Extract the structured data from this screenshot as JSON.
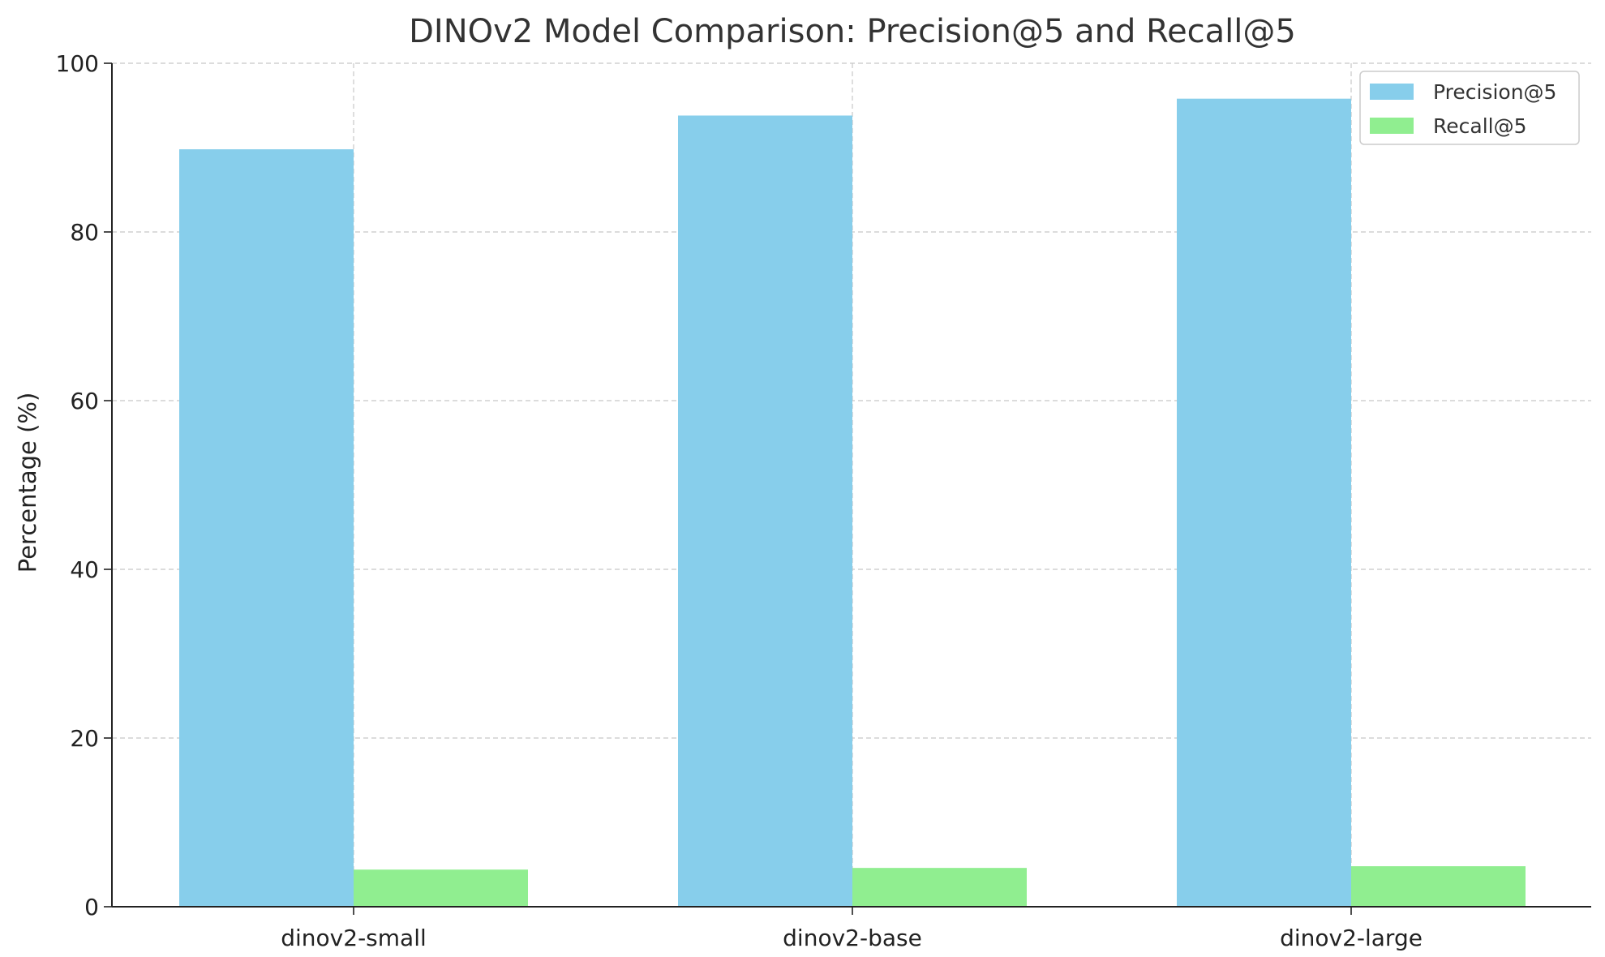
{
  "chart_data": {
    "type": "bar",
    "title": "DINOv2 Model Comparison: Precision@5 and Recall@5",
    "xlabel": "",
    "ylabel": "Percentage (%)",
    "categories": [
      "dinov2-small",
      "dinov2-base",
      "dinov2-large"
    ],
    "series": [
      {
        "name": "Precision@5",
        "values": [
          89.8,
          93.8,
          95.8
        ],
        "color": "#87CEEB"
      },
      {
        "name": "Recall@5",
        "values": [
          4.4,
          4.6,
          4.8
        ],
        "color": "#90EE90"
      }
    ],
    "ylim": [
      0,
      100
    ],
    "yticks": [
      0,
      20,
      40,
      60,
      80,
      100
    ],
    "grid": true,
    "legend_position": "top-right"
  }
}
